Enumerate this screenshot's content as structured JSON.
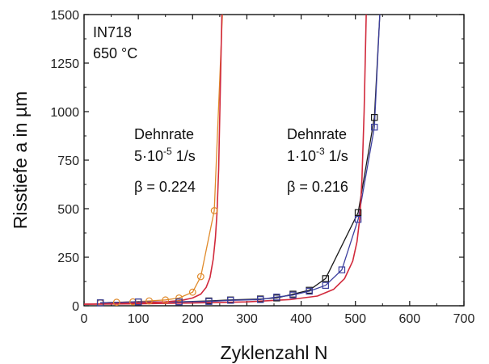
{
  "chart_data": {
    "type": "line",
    "xlabel": "Zyklenzahl N",
    "ylabel": "Risstiefe a in µm",
    "xlim": [
      0,
      700
    ],
    "ylim": [
      0,
      1500
    ],
    "xticks": [
      0,
      100,
      200,
      300,
      400,
      500,
      600,
      700
    ],
    "yticks": [
      0,
      250,
      500,
      750,
      1000,
      1250,
      1500
    ],
    "grid": false,
    "annotations": {
      "material": "IN718",
      "temperature": "650 °C",
      "group1": {
        "title": "Dehnrate",
        "rate_base": "5·10",
        "rate_exp": "-5",
        "rate_unit": " 1/s",
        "beta": "β = 0.224"
      },
      "group2": {
        "title": "Dehnrate",
        "rate_base": "1·10",
        "rate_exp": "-3",
        "rate_unit": " 1/s",
        "beta": "β = 0.216"
      }
    },
    "series": [
      {
        "marker": "circle",
        "color": "#e08a2a",
        "x": [
          30,
          60,
          90,
          120,
          150,
          175,
          200,
          215,
          240,
          255
        ],
        "y": [
          15,
          18,
          20,
          25,
          30,
          40,
          70,
          150,
          490,
          1500
        ]
      },
      {
        "marker": "square",
        "color": "#1a1a1a",
        "x": [
          30,
          100,
          175,
          230,
          270,
          325,
          355,
          385,
          415,
          445,
          505,
          535,
          545
        ],
        "y": [
          15,
          20,
          20,
          25,
          30,
          35,
          40,
          60,
          80,
          140,
          480,
          970,
          1500
        ]
      },
      {
        "marker": "square",
        "color": "#3c3f9e",
        "x": [
          30,
          100,
          175,
          230,
          270,
          325,
          355,
          385,
          415,
          445,
          475,
          505,
          535,
          545
        ],
        "y": [
          15,
          20,
          20,
          22,
          28,
          32,
          45,
          55,
          75,
          105,
          185,
          445,
          920,
          1500
        ]
      },
      {
        "marker": "none",
        "color": "#d12a3c",
        "x": [
          0,
          50,
          100,
          150,
          180,
          200,
          215,
          225,
          232,
          238,
          242,
          245,
          248,
          251,
          254
        ],
        "y": [
          8,
          10,
          14,
          20,
          28,
          40,
          60,
          95,
          145,
          240,
          350,
          480,
          700,
          1100,
          1500
        ]
      },
      {
        "marker": "none",
        "color": "#d12a3c",
        "x": [
          0,
          100,
          200,
          300,
          380,
          430,
          460,
          480,
          495,
          503,
          508,
          512,
          516,
          520
        ],
        "y": [
          8,
          10,
          14,
          20,
          32,
          50,
          85,
          140,
          230,
          330,
          450,
          650,
          1000,
          1500
        ]
      }
    ]
  }
}
